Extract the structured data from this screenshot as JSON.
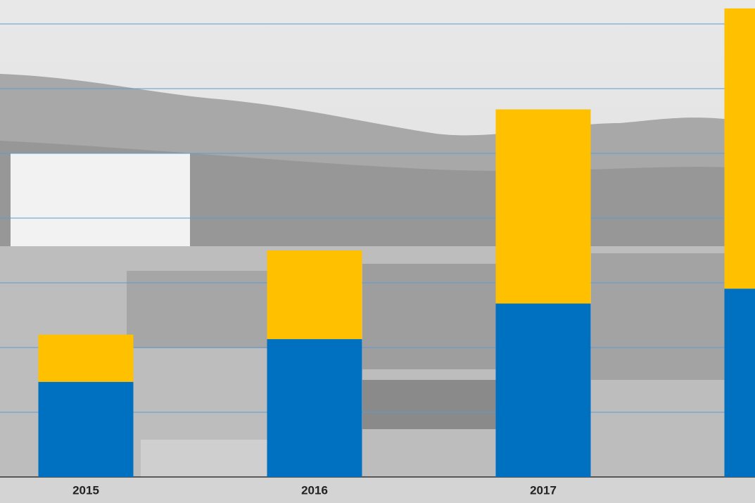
{
  "chart_data": {
    "type": "stacked_bar",
    "categories": [
      "2015",
      "2016",
      "2017",
      null
    ],
    "series": [
      {
        "color": "#0070c0",
        "values": [
          1.47,
          2.13,
          2.68,
          2.91
        ]
      },
      {
        "color": "#ffc000",
        "values": [
          0.73,
          1.37,
          3.0,
          4.33
        ]
      }
    ],
    "ylim": [
      0,
      7.37
    ],
    "yticks": [
      1,
      2,
      3,
      4,
      5,
      6,
      7
    ],
    "grid": true
  }
}
